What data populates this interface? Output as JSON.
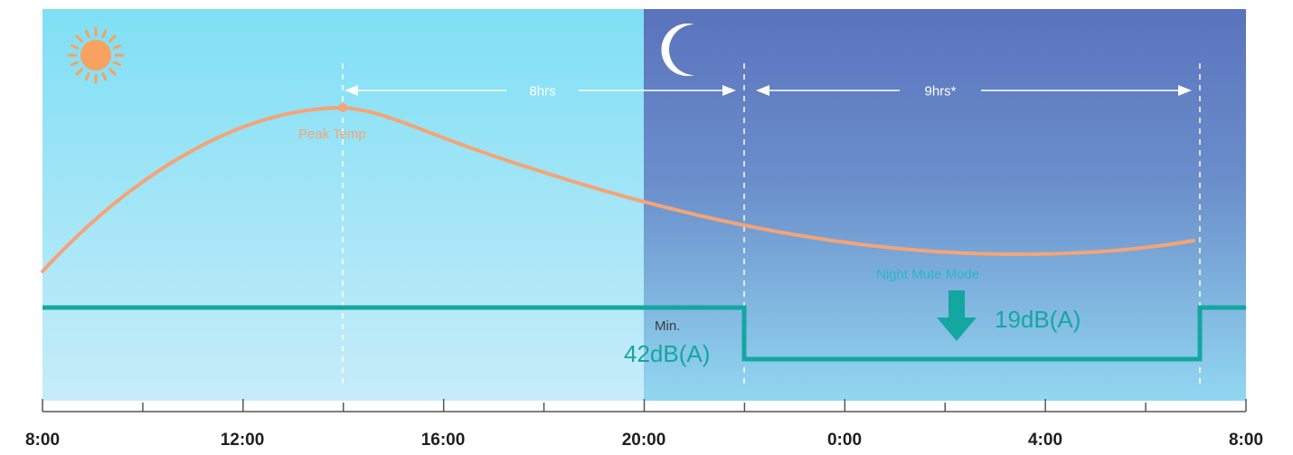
{
  "background": {
    "day_color_top": "#7fdff5",
    "day_color_bottom": "#c7ecf9",
    "night_color_top": "#5a73bd",
    "night_color_bottom": "#92d7f1"
  },
  "icons": {
    "day": "sun-icon",
    "night": "moon-icon",
    "mute_arrow": "arrow-down-icon",
    "sun_color": "#f7a25f",
    "moon_color": "#ffffff"
  },
  "labels": {
    "peak_temp": "Peak Temp",
    "day_duration": "8hrs",
    "night_duration": "9hrs*",
    "night_mute_mode": "Night Mute Mode",
    "night_db": "19dB(A)",
    "min_label": "Min.",
    "day_db": "42dB(A)"
  },
  "axis": {
    "ticks": [
      "8:00",
      "12:00",
      "16:00",
      "20:00",
      "0:00",
      "4:00",
      "8:00"
    ]
  },
  "colors": {
    "temperature_curve": "#f4a477",
    "noise_line": "#14a79f",
    "axis": "#555555",
    "dashed": "#ffffff"
  },
  "chart_data": {
    "type": "line",
    "x_range_hours": [
      8,
      32
    ],
    "night_start_hour": 20,
    "series": [
      {
        "name": "Peak Temp",
        "kind": "temperature",
        "peak_hour": 14
      },
      {
        "kind": "noise_level_dBA",
        "points": [
          [
            8,
            42
          ],
          [
            22,
            42
          ],
          [
            22,
            19
          ],
          [
            31,
            19
          ],
          [
            31,
            42
          ],
          [
            32,
            42
          ]
        ]
      }
    ],
    "annotations": [
      {
        "text": "8hrs",
        "from_hour": 14,
        "to_hour": 22
      },
      {
        "text": "9hrs*",
        "from_hour": 22,
        "to_hour": 31
      }
    ]
  }
}
